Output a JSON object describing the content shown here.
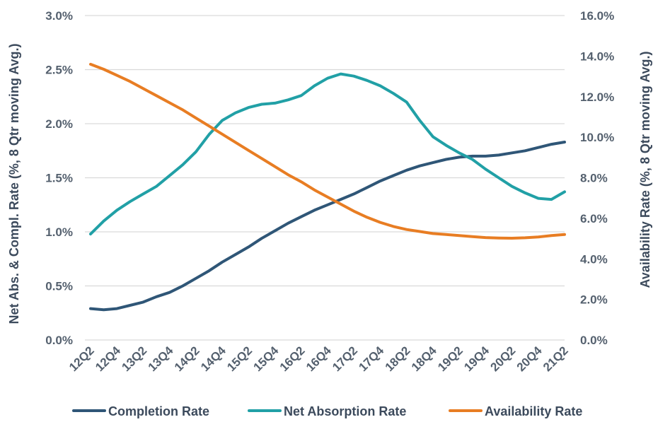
{
  "chart_data": {
    "type": "line",
    "xlabel": "",
    "ylabel_left": "Net Abs. & Compl. Rate (%, 8 Qtr moving Avg.)",
    "ylabel_right": "Availability Rate (%, 8 Qtr moving Avg.)",
    "ylim_left": [
      0,
      3.0
    ],
    "ylim_right": [
      0,
      16.0
    ],
    "yticks_left": [
      "0.0%",
      "0.5%",
      "1.0%",
      "1.5%",
      "2.0%",
      "2.5%",
      "3.0%"
    ],
    "yticks_right": [
      "0.0%",
      "2.0%",
      "4.0%",
      "6.0%",
      "8.0%",
      "10.0%",
      "12.0%",
      "14.0%",
      "16.0%"
    ],
    "x": [
      "12Q2",
      "12Q3",
      "12Q4",
      "13Q1",
      "13Q2",
      "13Q3",
      "13Q4",
      "14Q1",
      "14Q2",
      "14Q3",
      "14Q4",
      "15Q1",
      "15Q2",
      "15Q3",
      "15Q4",
      "16Q1",
      "16Q2",
      "16Q3",
      "16Q4",
      "17Q1",
      "17Q2",
      "17Q3",
      "17Q4",
      "18Q1",
      "18Q2",
      "18Q3",
      "18Q4",
      "19Q1",
      "19Q2",
      "19Q3",
      "19Q4",
      "20Q1",
      "20Q2",
      "20Q3",
      "20Q4",
      "21Q1",
      "21Q2"
    ],
    "xtick_labels": [
      "12Q2",
      "12Q4",
      "13Q2",
      "13Q4",
      "14Q2",
      "14Q4",
      "15Q2",
      "15Q4",
      "16Q2",
      "16Q4",
      "17Q2",
      "17Q4",
      "18Q2",
      "18Q4",
      "19Q2",
      "19Q4",
      "20Q2",
      "20Q4",
      "21Q2"
    ],
    "grid": true,
    "legend_position": "bottom",
    "series": [
      {
        "name": "Completion Rate",
        "axis": "left",
        "color": "#2f5677",
        "values": [
          0.29,
          0.28,
          0.29,
          0.32,
          0.35,
          0.4,
          0.44,
          0.5,
          0.57,
          0.64,
          0.72,
          0.79,
          0.86,
          0.94,
          1.01,
          1.08,
          1.14,
          1.2,
          1.25,
          1.3,
          1.35,
          1.41,
          1.47,
          1.52,
          1.57,
          1.61,
          1.64,
          1.67,
          1.69,
          1.7,
          1.7,
          1.71,
          1.73,
          1.75,
          1.78,
          1.81,
          1.83
        ]
      },
      {
        "name": "Net Absorption Rate",
        "axis": "left",
        "color": "#21a0a6",
        "values": [
          0.98,
          1.1,
          1.2,
          1.28,
          1.35,
          1.42,
          1.52,
          1.62,
          1.74,
          1.9,
          2.03,
          2.1,
          2.15,
          2.18,
          2.19,
          2.22,
          2.26,
          2.35,
          2.42,
          2.46,
          2.44,
          2.4,
          2.35,
          2.28,
          2.2,
          2.03,
          1.88,
          1.8,
          1.73,
          1.67,
          1.58,
          1.5,
          1.42,
          1.36,
          1.31,
          1.3,
          1.37
        ]
      },
      {
        "name": "Availability Rate",
        "axis": "right",
        "color": "#e87d23",
        "values": [
          13.6,
          13.35,
          13.05,
          12.75,
          12.4,
          12.05,
          11.7,
          11.35,
          10.95,
          10.55,
          10.15,
          9.75,
          9.35,
          8.95,
          8.55,
          8.15,
          7.8,
          7.4,
          7.05,
          6.7,
          6.35,
          6.05,
          5.8,
          5.6,
          5.45,
          5.35,
          5.25,
          5.2,
          5.15,
          5.1,
          5.05,
          5.03,
          5.02,
          5.04,
          5.08,
          5.15,
          5.2
        ]
      }
    ]
  }
}
